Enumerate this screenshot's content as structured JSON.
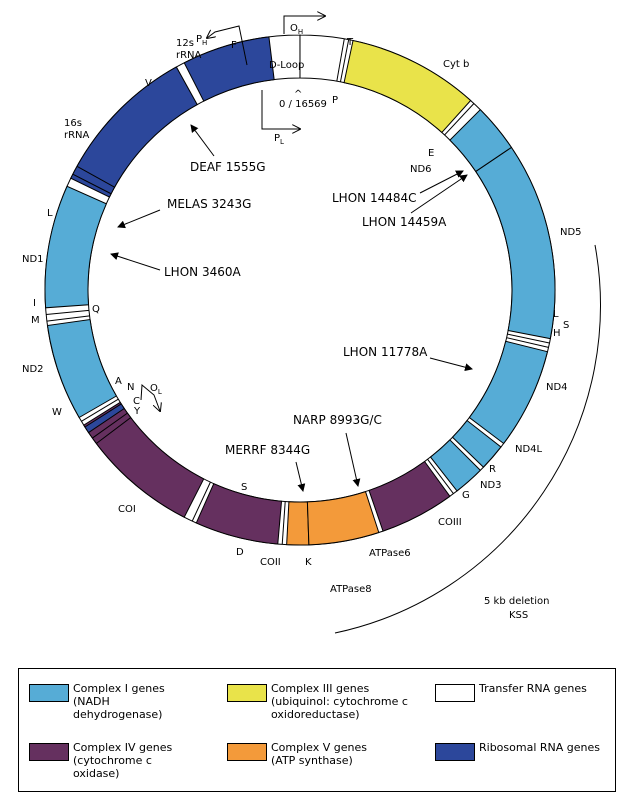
{
  "colors": {
    "complex_i": "#56acd6",
    "complex_iii": "#e9e34a",
    "complex_iv": "#65305f",
    "complex_v": "#f39a3a",
    "trna": "#ffffff",
    "rrna": "#2c479b"
  },
  "genes": [
    {
      "label": "12s\nrRNA",
      "type": "rrna"
    },
    {
      "label": "16s\nrRNA",
      "type": "rrna"
    },
    {
      "label": "ND1",
      "type": "complex_i"
    },
    {
      "label": "ND2",
      "type": "complex_i"
    },
    {
      "label": "COI",
      "type": "complex_iv"
    },
    {
      "label": "COII",
      "type": "complex_iv"
    },
    {
      "label": "ATPase8",
      "type": "complex_v"
    },
    {
      "label": "ATPase6",
      "type": "complex_v"
    },
    {
      "label": "COIII",
      "type": "complex_iv"
    },
    {
      "label": "ND3",
      "type": "complex_i"
    },
    {
      "label": "ND4L",
      "type": "complex_i"
    },
    {
      "label": "ND4",
      "type": "complex_i"
    },
    {
      "label": "ND5",
      "type": "complex_i"
    },
    {
      "label": "ND6",
      "type": "complex_i"
    },
    {
      "label": "Cyt b",
      "type": "complex_iii"
    }
  ],
  "trna_labels": [
    "F",
    "V",
    "L",
    "I",
    "M",
    "Q",
    "W",
    "A",
    "N",
    "C",
    "Y",
    "S",
    "D",
    "K",
    "G",
    "R",
    "H",
    "S",
    "L",
    "E",
    "T",
    "P"
  ],
  "dloop": {
    "label": "D-Loop",
    "origin": "0 / 16569",
    "caret": "^",
    "oh_main": "O",
    "oh_sub": "H",
    "ph_main": "P",
    "ph_sub": "H",
    "pl_main": "P",
    "pl_sub": "L",
    "ol_main": "O",
    "ol_sub": "L"
  },
  "mutations": [
    {
      "label": "DEAF 1555G"
    },
    {
      "label": "MELAS 3243G"
    },
    {
      "label": "LHON 3460A"
    },
    {
      "label": "MERRF 8344G"
    },
    {
      "label": "NARP 8993G/C"
    },
    {
      "label": "LHON 11778A"
    },
    {
      "label": "LHON 14484C"
    },
    {
      "label": "LHON 14459A"
    }
  ],
  "deletion": {
    "line1": "5 kb deletion",
    "line2": "KSS"
  },
  "legend": [
    {
      "type": "complex_i",
      "text": "Complex I genes\n(NADH\ndehydrogenase)"
    },
    {
      "type": "complex_iii",
      "text": "Complex III genes\n(ubiquinol: cytochrome c\noxidoreductase)"
    },
    {
      "type": "trna",
      "text": "Transfer RNA genes"
    },
    {
      "type": "complex_iv",
      "text": "Complex IV genes\n(cytochrome c\noxidase)"
    },
    {
      "type": "complex_v",
      "text": "Complex V genes\n(ATP synthase)"
    },
    {
      "type": "rrna",
      "text": "Ribosomal RNA genes"
    }
  ]
}
